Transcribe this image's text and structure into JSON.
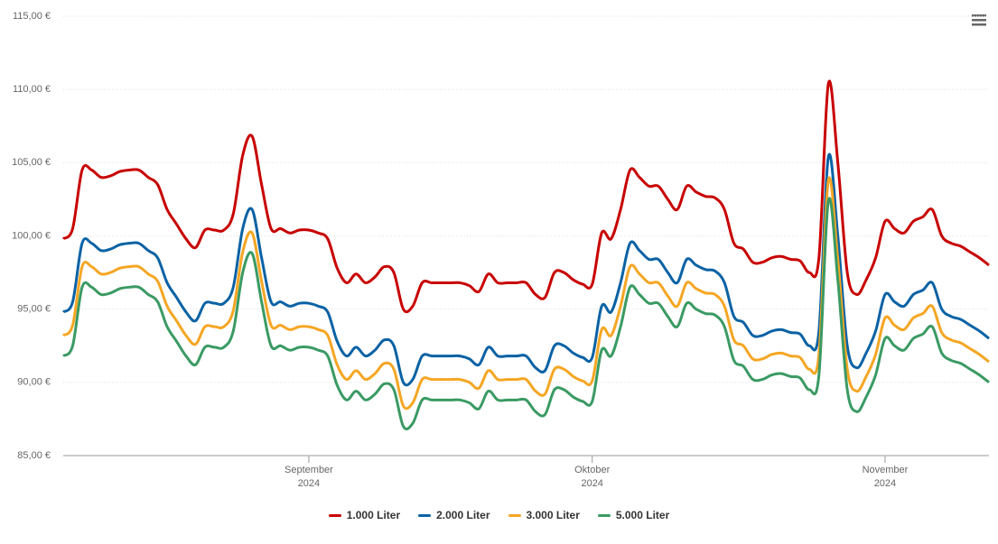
{
  "chart_data": {
    "type": "line",
    "categories": [
      null,
      null,
      null,
      null,
      null,
      null,
      null,
      null,
      null,
      null,
      null,
      null,
      null,
      null,
      null,
      null,
      null,
      null,
      null,
      null,
      null,
      null,
      null,
      null,
      null,
      null,
      "September 2024",
      null,
      null,
      null,
      null,
      null,
      null,
      null,
      null,
      null,
      null,
      null,
      null,
      null,
      null,
      null,
      null,
      null,
      null,
      null,
      null,
      null,
      null,
      null,
      null,
      null,
      null,
      null,
      null,
      null,
      "Oktober 2024",
      null,
      null,
      null,
      null,
      null,
      null,
      null,
      null,
      null,
      null,
      null,
      null,
      null,
      null,
      null,
      null,
      null,
      null,
      null,
      null,
      null,
      null,
      null,
      null,
      null,
      null,
      null,
      null,
      null,
      null,
      "November 2024",
      null,
      null,
      null,
      null,
      null,
      null,
      null,
      null,
      null,
      null,
      null
    ],
    "series": [
      {
        "name": "1.000 Liter",
        "color": "#c80000",
        "values": [
          99.8,
          100.5,
          104.5,
          104.5,
          104.0,
          104.1,
          104.4,
          104.5,
          104.5,
          104.0,
          103.5,
          101.8,
          100.8,
          99.8,
          99.2,
          100.4,
          100.4,
          100.4,
          101.5,
          105.5,
          106.8,
          103.5,
          100.5,
          100.5,
          100.2,
          100.4,
          100.4,
          100.2,
          99.8,
          97.8,
          96.8,
          97.4,
          96.8,
          97.2,
          97.9,
          97.5,
          95.0,
          95.2,
          96.8,
          96.8,
          96.8,
          96.8,
          96.8,
          96.6,
          96.2,
          97.4,
          96.8,
          96.8,
          96.8,
          96.8,
          96.0,
          95.8,
          97.5,
          97.5,
          97.0,
          96.7,
          96.7,
          100.2,
          99.8,
          101.8,
          104.5,
          104.0,
          103.4,
          103.4,
          102.5,
          101.8,
          103.4,
          103.0,
          102.7,
          102.6,
          101.8,
          99.5,
          99.1,
          98.2,
          98.2,
          98.5,
          98.6,
          98.4,
          98.3,
          97.5,
          98.5,
          110.4,
          105.0,
          97.5,
          96.0,
          97.0,
          98.5,
          101.0,
          100.5,
          100.2,
          101.0,
          101.3,
          101.8,
          100.0,
          99.5,
          99.3,
          98.9,
          98.5,
          98.0
        ]
      },
      {
        "name": "2.000 Liter",
        "color": "#0a62a4",
        "values": [
          94.8,
          95.5,
          99.5,
          99.5,
          99.0,
          99.1,
          99.4,
          99.5,
          99.5,
          99.0,
          98.5,
          96.8,
          95.8,
          94.8,
          94.2,
          95.4,
          95.4,
          95.4,
          96.5,
          100.5,
          101.8,
          98.5,
          95.5,
          95.5,
          95.2,
          95.4,
          95.4,
          95.2,
          94.8,
          92.8,
          91.8,
          92.4,
          91.8,
          92.2,
          92.9,
          92.5,
          90.0,
          90.2,
          91.8,
          91.8,
          91.8,
          91.8,
          91.8,
          91.6,
          91.2,
          92.4,
          91.8,
          91.8,
          91.8,
          91.8,
          91.0,
          90.8,
          92.5,
          92.5,
          92.0,
          91.7,
          91.7,
          95.2,
          94.8,
          96.8,
          99.5,
          99.0,
          98.4,
          98.4,
          97.5,
          96.8,
          98.4,
          98.0,
          97.7,
          97.6,
          96.8,
          94.5,
          94.1,
          93.2,
          93.2,
          93.5,
          93.6,
          93.4,
          93.3,
          92.5,
          93.5,
          105.4,
          100.0,
          92.5,
          91.0,
          92.0,
          93.5,
          96.0,
          95.5,
          95.2,
          96.0,
          96.3,
          96.8,
          95.0,
          94.5,
          94.3,
          93.9,
          93.5,
          93.0
        ]
      },
      {
        "name": "3.000 Liter",
        "color": "#f5a623",
        "values": [
          93.2,
          93.9,
          97.9,
          97.9,
          97.4,
          97.5,
          97.8,
          97.9,
          97.9,
          97.4,
          96.9,
          95.2,
          94.2,
          93.2,
          92.6,
          93.8,
          93.8,
          93.8,
          94.9,
          98.9,
          100.2,
          96.9,
          93.9,
          93.9,
          93.6,
          93.8,
          93.8,
          93.6,
          93.2,
          91.2,
          90.2,
          90.8,
          90.2,
          90.6,
          91.3,
          90.9,
          88.4,
          88.6,
          90.2,
          90.2,
          90.2,
          90.2,
          90.2,
          90.0,
          89.6,
          90.8,
          90.2,
          90.2,
          90.2,
          90.2,
          89.4,
          89.2,
          90.9,
          90.9,
          90.4,
          90.1,
          90.1,
          93.6,
          93.2,
          95.2,
          97.9,
          97.4,
          96.8,
          96.8,
          95.9,
          95.2,
          96.8,
          96.4,
          96.1,
          96.0,
          95.2,
          92.9,
          92.5,
          91.6,
          91.6,
          91.9,
          92.0,
          91.8,
          91.7,
          90.9,
          91.9,
          103.8,
          98.4,
          90.9,
          89.4,
          90.4,
          91.9,
          94.4,
          93.9,
          93.6,
          94.4,
          94.7,
          95.2,
          93.4,
          92.9,
          92.7,
          92.3,
          91.9,
          91.4
        ]
      },
      {
        "name": "5.000 Liter",
        "color": "#3a9a63",
        "values": [
          91.8,
          92.5,
          96.5,
          96.5,
          96.0,
          96.1,
          96.4,
          96.5,
          96.5,
          96.0,
          95.5,
          93.8,
          92.8,
          91.8,
          91.2,
          92.4,
          92.4,
          92.4,
          93.5,
          97.5,
          98.8,
          95.5,
          92.5,
          92.5,
          92.2,
          92.4,
          92.4,
          92.2,
          91.8,
          89.8,
          88.8,
          89.4,
          88.8,
          89.2,
          89.9,
          89.5,
          87.0,
          87.2,
          88.8,
          88.8,
          88.8,
          88.8,
          88.8,
          88.6,
          88.2,
          89.4,
          88.8,
          88.8,
          88.8,
          88.8,
          88.0,
          87.8,
          89.5,
          89.5,
          89.0,
          88.7,
          88.7,
          92.2,
          91.8,
          93.8,
          96.5,
          96.0,
          95.4,
          95.4,
          94.5,
          93.8,
          95.4,
          95.0,
          94.7,
          94.6,
          93.8,
          91.5,
          91.1,
          90.2,
          90.2,
          90.5,
          90.6,
          90.4,
          90.3,
          89.5,
          90.5,
          102.4,
          97.0,
          89.5,
          88.0,
          89.0,
          90.5,
          93.0,
          92.5,
          92.2,
          93.0,
          93.3,
          93.8,
          92.0,
          91.5,
          91.3,
          90.9,
          90.5,
          90.0
        ]
      }
    ],
    "ylim": [
      85,
      115
    ],
    "yticks": [
      {
        "value": 85,
        "label": "85,00 €"
      },
      {
        "value": 90,
        "label": "90,00 €"
      },
      {
        "value": 95,
        "label": "95,00 €"
      },
      {
        "value": 100,
        "label": "100,00 €"
      },
      {
        "value": 105,
        "label": "105,00 €"
      },
      {
        "value": 110,
        "label": "110,00 €"
      },
      {
        "value": 115,
        "label": "115,00 €"
      }
    ],
    "grid": true,
    "legend": "bottom"
  }
}
